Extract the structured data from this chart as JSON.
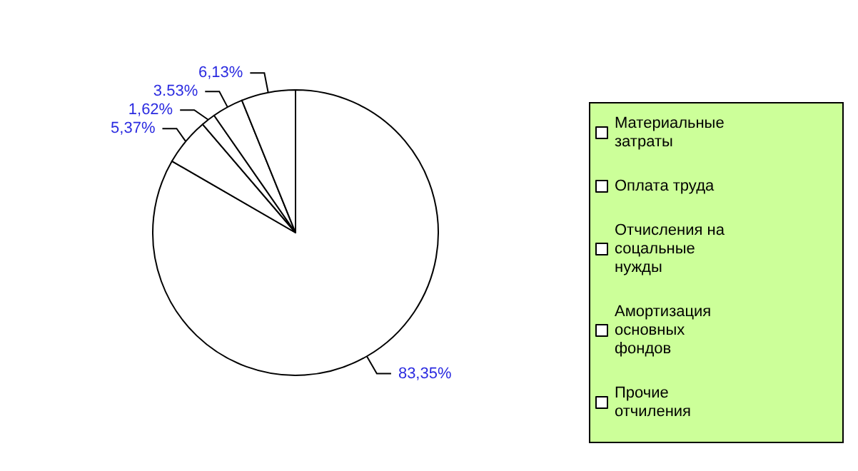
{
  "chart_data": {
    "type": "pie",
    "categories": [
      "Материальные затраты",
      "Оплата труда",
      "Отчисления на соцальные нужды",
      "Амортизация основных фондов",
      "Прочие отчиления"
    ],
    "values": [
      83.35,
      5.37,
      1.62,
      3.53,
      6.13
    ],
    "value_labels": [
      "83,35%",
      "5,37%",
      "1,62%",
      "3.53%",
      "6,13%"
    ],
    "colors": [
      "#ffffff",
      "#ffffff",
      "#ffffff",
      "#ffffff",
      "#ffffff"
    ],
    "legend": "right"
  }
}
